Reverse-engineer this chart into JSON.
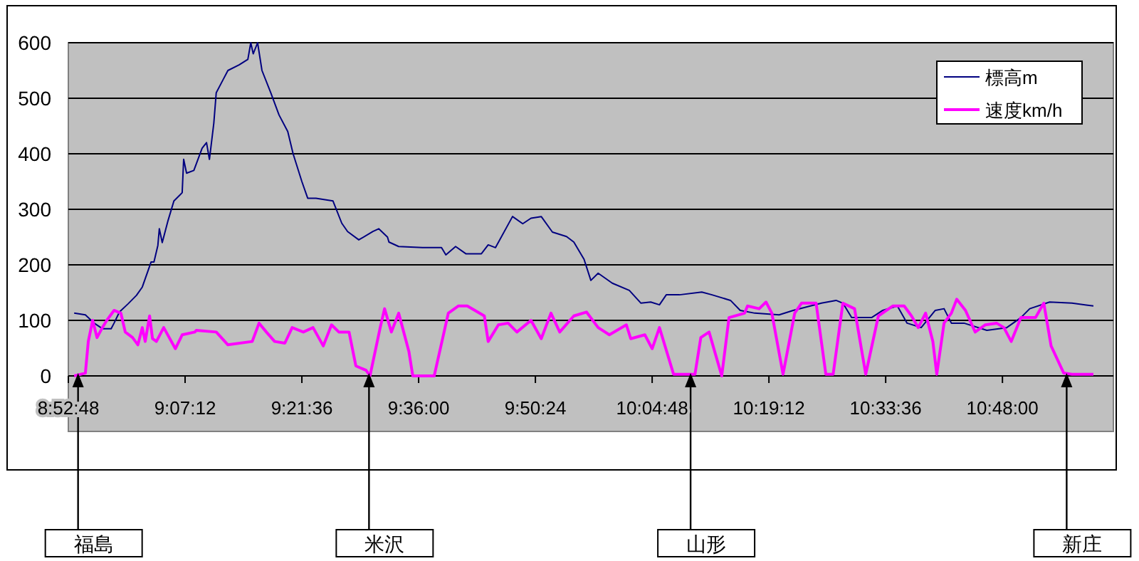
{
  "chart_data": {
    "type": "line",
    "xlim": [
      8.88,
      11.028
    ],
    "ylim": [
      -100,
      600
    ],
    "xticks": [
      {
        "value": 8.88,
        "label": "8:52:48"
      },
      {
        "value": 9.12,
        "label": "9:07:12"
      },
      {
        "value": 9.36,
        "label": "9:21:36"
      },
      {
        "value": 9.6,
        "label": "9:36:00"
      },
      {
        "value": 9.84,
        "label": "9:50:24"
      },
      {
        "value": 10.08,
        "label": "10:04:48"
      },
      {
        "value": 10.32,
        "label": "10:19:12"
      },
      {
        "value": 10.56,
        "label": "10:33:36"
      },
      {
        "value": 10.8,
        "label": "10:48:00"
      }
    ],
    "yticks": [
      0,
      100,
      200,
      300,
      400,
      500,
      600
    ],
    "grid": "y",
    "legend": "top right",
    "line_style": "solid",
    "series": [
      {
        "name": "標高m",
        "color": "#000080",
        "x": [
          8.892,
          8.915,
          8.933,
          8.95,
          8.968,
          8.974,
          8.985,
          9.003,
          9.02,
          9.032,
          9.044,
          9.05,
          9.056,
          9.064,
          9.067,
          9.073,
          9.085,
          9.097,
          9.114,
          9.117,
          9.123,
          9.138,
          9.155,
          9.164,
          9.17,
          9.179,
          9.184,
          9.196,
          9.208,
          9.231,
          9.249,
          9.255,
          9.26,
          9.269,
          9.278,
          9.296,
          9.313,
          9.331,
          9.342,
          9.36,
          9.372,
          9.389,
          9.424,
          9.442,
          9.454,
          9.477,
          9.506,
          9.518,
          9.536,
          9.539,
          9.559,
          9.608,
          9.647,
          9.656,
          9.676,
          9.697,
          9.729,
          9.743,
          9.758,
          9.793,
          9.814,
          9.831,
          9.852,
          9.875,
          9.904,
          9.919,
          9.94,
          9.954,
          9.969,
          9.998,
          10.033,
          10.057,
          10.077,
          10.095,
          10.109,
          10.136,
          10.182,
          10.203,
          10.241,
          10.261,
          10.291,
          10.341,
          10.37,
          10.428,
          10.458,
          10.472,
          10.49,
          10.531,
          10.554,
          10.584,
          10.604,
          10.633,
          10.662,
          10.68,
          10.695,
          10.721,
          10.768,
          10.809,
          10.838,
          10.856,
          10.897,
          10.943,
          10.987
        ],
        "values": [
          113,
          110,
          95,
          85,
          85,
          95,
          115,
          130,
          145,
          160,
          190,
          205,
          205,
          235,
          265,
          240,
          280,
          315,
          330,
          390,
          365,
          370,
          410,
          420,
          390,
          455,
          510,
          530,
          550,
          560,
          570,
          600,
          580,
          600,
          550,
          510,
          470,
          440,
          400,
          350,
          320,
          320,
          315,
          275,
          260,
          245,
          260,
          265,
          250,
          241,
          233,
          231,
          231,
          218,
          233,
          220,
          220,
          236,
          231,
          287,
          274,
          284,
          287,
          259,
          251,
          241,
          210,
          172,
          185,
          167,
          154,
          131,
          133,
          128,
          146,
          146,
          151,
          146,
          136,
          118,
          113,
          110,
          118,
          131,
          136,
          131,
          105,
          105,
          118,
          126,
          95,
          87,
          118,
          121,
          95,
          95,
          82,
          87,
          105,
          121,
          133,
          131,
          126
        ]
      },
      {
        "name": "速度km/h",
        "color": "#ff00ff",
        "x": [
          8.892,
          8.915,
          8.921,
          8.93,
          8.939,
          8.95,
          8.959,
          8.974,
          8.988,
          8.997,
          9.012,
          9.023,
          9.032,
          9.038,
          9.047,
          9.053,
          9.061,
          9.076,
          9.1,
          9.114,
          9.14,
          9.143,
          9.184,
          9.208,
          9.258,
          9.272,
          9.287,
          9.304,
          9.325,
          9.34,
          9.363,
          9.383,
          9.404,
          9.421,
          9.436,
          9.457,
          9.471,
          9.492,
          9.5,
          9.521,
          9.53,
          9.544,
          9.559,
          9.58,
          9.588,
          9.632,
          9.661,
          9.682,
          9.7,
          9.735,
          9.743,
          9.764,
          9.784,
          9.802,
          9.831,
          9.852,
          9.872,
          9.89,
          9.919,
          9.945,
          9.969,
          9.992,
          10.027,
          10.036,
          10.065,
          10.08,
          10.095,
          10.124,
          10.168,
          10.18,
          10.197,
          10.223,
          10.238,
          10.27,
          10.276,
          10.3,
          10.314,
          10.326,
          10.349,
          10.373,
          10.387,
          10.417,
          10.437,
          10.452,
          10.472,
          10.496,
          10.519,
          10.545,
          10.575,
          10.598,
          10.613,
          10.627,
          10.642,
          10.657,
          10.665,
          10.68,
          10.695,
          10.706,
          10.724,
          10.744,
          10.765,
          10.788,
          10.803,
          10.818,
          10.838,
          10.868,
          10.885,
          10.9,
          10.926,
          10.943,
          10.987
        ],
        "values": [
          0,
          5,
          62,
          100,
          69,
          87,
          100,
          118,
          113,
          79,
          69,
          56,
          87,
          62,
          108,
          67,
          62,
          87,
          49,
          74,
          79,
          82,
          79,
          56,
          62,
          95,
          79,
          62,
          59,
          87,
          79,
          87,
          54,
          92,
          79,
          79,
          18,
          10,
          0,
          87,
          121,
          79,
          113,
          44,
          0,
          0,
          113,
          126,
          126,
          108,
          62,
          92,
          95,
          79,
          100,
          67,
          113,
          79,
          108,
          115,
          87,
          74,
          92,
          67,
          74,
          49,
          87,
          3,
          3,
          69,
          79,
          0,
          105,
          113,
          126,
          121,
          133,
          113,
          3,
          113,
          131,
          131,
          3,
          3,
          131,
          121,
          3,
          108,
          126,
          126,
          108,
          87,
          113,
          62,
          3,
          95,
          113,
          138,
          118,
          79,
          92,
          95,
          87,
          62,
          105,
          105,
          131,
          54,
          5,
          3,
          3
        ]
      }
    ],
    "annotations": [
      {
        "text": "福島",
        "x": 8.9,
        "y": 0
      },
      {
        "text": "米沢",
        "x": 9.498,
        "y": 0
      },
      {
        "text": "山形",
        "x": 10.159,
        "y": 0
      },
      {
        "text": "新庄",
        "x": 10.932,
        "y": 0
      }
    ]
  }
}
